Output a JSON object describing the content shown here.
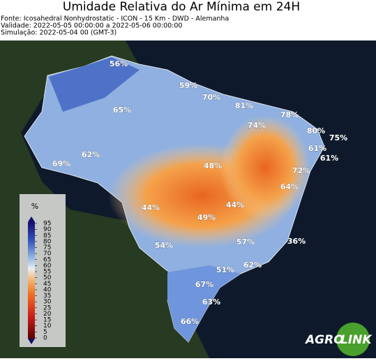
{
  "header": {
    "title": "Umidade Relativa do Ar Mínima em 24H",
    "lines": [
      "Fonte: Icosahedral Nonhydrostatic - ICON - 15 Km - DWD - Alemanha",
      "Validade: 2022-05-05 00:00:00 a 2022-05-06 00:00:00",
      "Simulação: 2022-05-04 00 (GMT-3)"
    ]
  },
  "map": {
    "labels": [
      "56%",
      "59%",
      "70%",
      "81%",
      "78%",
      "74%",
      "80%",
      "75%",
      "65%",
      "61%",
      "61%",
      "62%",
      "69%",
      "48%",
      "72%",
      "64%",
      "44%",
      "44%",
      "49%",
      "54%",
      "57%",
      "36%",
      "62%",
      "51%",
      "67%",
      "63%",
      "66%"
    ]
  },
  "colorbar": {
    "unit": "%",
    "ticks": [
      95,
      90,
      85,
      80,
      75,
      70,
      65,
      60,
      55,
      50,
      45,
      40,
      35,
      30,
      25,
      20,
      15,
      10,
      5,
      0
    ]
  },
  "logo": {
    "left": "AGRO",
    "right": "LINK"
  }
}
